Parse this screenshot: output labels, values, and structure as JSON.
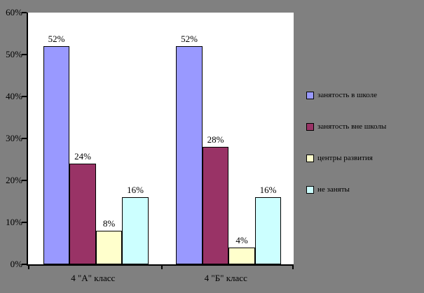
{
  "colors": {
    "chart_background": "#808080",
    "plot_background": "#ffffff",
    "axis": "#000000",
    "text": "#000000"
  },
  "chart_data": {
    "type": "bar",
    "title": "",
    "xlabel": "",
    "ylabel": "",
    "categories": [
      "4 \"А\" класс",
      "4 \"Б\" класс"
    ],
    "series": [
      {
        "name": "занятость в школе",
        "color": "#9999FF",
        "values": [
          52,
          52
        ],
        "labels": [
          "52%",
          "52%"
        ]
      },
      {
        "name": "занятость вне школы",
        "color": "#993366",
        "values": [
          24,
          28
        ],
        "labels": [
          "24%",
          "28%"
        ]
      },
      {
        "name": "центры развития",
        "color": "#FFFFCC",
        "values": [
          8,
          4
        ],
        "labels": [
          "8%",
          "4%"
        ]
      },
      {
        "name": "не заняты",
        "color": "#CCFFFF",
        "values": [
          16,
          16
        ],
        "labels": [
          "16%",
          "16%"
        ]
      }
    ],
    "ylim": [
      0,
      60
    ],
    "y_ticks": [
      {
        "value": 0,
        "label": "0%"
      },
      {
        "value": 10,
        "label": "10%"
      },
      {
        "value": 20,
        "label": "20%"
      },
      {
        "value": 30,
        "label": "30%"
      },
      {
        "value": 40,
        "label": "40%"
      },
      {
        "value": 50,
        "label": "50%"
      },
      {
        "value": 60,
        "label": "60%"
      }
    ],
    "grid": false,
    "legend_position": "right",
    "data_labels": true
  }
}
